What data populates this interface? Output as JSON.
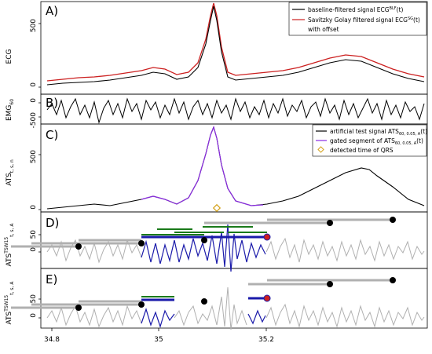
{
  "chart_data": [
    {
      "panel": "A)",
      "type": "line",
      "ylabel": "ECG",
      "ytick_labels": [
        "0",
        "500"
      ],
      "ylim": [
        -30,
        640
      ],
      "x": [
        34.8,
        34.86,
        34.9,
        34.95,
        35.0,
        35.04,
        35.07,
        35.08,
        35.09,
        35.1,
        35.11,
        35.12,
        35.14,
        35.18,
        35.24,
        35.3,
        35.34
      ],
      "series": [
        {
          "name": "baseline-filtered signal ECG^BLF(t)",
          "color": "#000000",
          "values": [
            20,
            30,
            45,
            55,
            65,
            90,
            150,
            300,
            580,
            300,
            100,
            60,
            70,
            100,
            150,
            140,
            55
          ]
        },
        {
          "name": "Savitzky Golay filtered signal ECG^SG(t) with offset",
          "color": "#cc2020",
          "values": [
            35,
            45,
            60,
            70,
            80,
            105,
            165,
            315,
            600,
            315,
            115,
            75,
            85,
            115,
            165,
            155,
            70
          ]
        }
      ],
      "legend": [
        {
          "label": "baseline-filtered signal ECG",
          "sup": "BLF",
          "tail": "(t)",
          "color": "#000000"
        },
        {
          "label": "Savitzky Golay filtered signal ECG",
          "sup": "SG",
          "tail": "(t)",
          "color": "#cc2020"
        },
        {
          "label": "with offset",
          "sup": "",
          "tail": "",
          "color": ""
        }
      ]
    },
    {
      "panel": "B)",
      "type": "line",
      "ylabel": "EMG",
      "ylabel_sub": "60",
      "ytick_labels": [
        "0",
        "-500"
      ],
      "ylim": [
        -600,
        350
      ],
      "note": "noise signal oscillating roughly between -500 and 300 over the full time range"
    },
    {
      "panel": "C)",
      "type": "line",
      "ylabel": "ATS",
      "ylabel_sub": "t, s, n",
      "ytick_labels": [
        "0",
        "500"
      ],
      "ylim": [
        -40,
        650
      ],
      "x": [
        34.8,
        34.86,
        34.9,
        34.95,
        35.0,
        35.04,
        35.07,
        35.08,
        35.09,
        35.1,
        35.11,
        35.12,
        35.14,
        35.18,
        35.24,
        35.3,
        35.34
      ],
      "series": [
        {
          "name": "artificial test signal ATS(t)",
          "color": "#000000",
          "values": [
            10,
            15,
            30,
            40,
            35,
            45,
            120,
            300,
            560,
            300,
            90,
            40,
            35,
            55,
            150,
            120,
            40
          ]
        },
        {
          "name": "gated segment of ATS(t)",
          "color": "#8a2be2",
          "x_range": [
            34.95,
            35.19
          ]
        }
      ],
      "detected_qrs_time": 35.1,
      "legend": [
        {
          "label": "artificial test signal ATS",
          "sub": "60, 0.05, A",
          "tail": "(t)",
          "color": "#000000"
        },
        {
          "label": "gated segment of ATS",
          "sub": "60, 0.05, A",
          "tail": "(t)",
          "color": "#8a2be2"
        },
        {
          "label": "detected time of QRS",
          "sub": "",
          "tail": "",
          "color": "#d4a017"
        }
      ]
    },
    {
      "panel": "D)",
      "type": "line",
      "ylabel": "ATS",
      "ylabel_sup": "TSW15",
      "ylabel_sub": "t, s, A",
      "ytick_labels": [
        "0",
        "50"
      ],
      "ylim": [
        -90,
        120
      ]
    },
    {
      "panel": "E)",
      "type": "line",
      "ylabel": "ATS",
      "ylabel_sup": "TSW15",
      "ylabel_sub": "t, s, A",
      "ytick_labels": [
        "0",
        "50"
      ],
      "ylim": [
        -90,
        120
      ]
    }
  ],
  "xaxis": {
    "xlim": [
      34.76,
      35.36
    ],
    "tick_values": [
      34.8,
      35,
      35.2
    ],
    "tick_labels": [
      "34.8",
      "35",
      "35.2"
    ]
  }
}
